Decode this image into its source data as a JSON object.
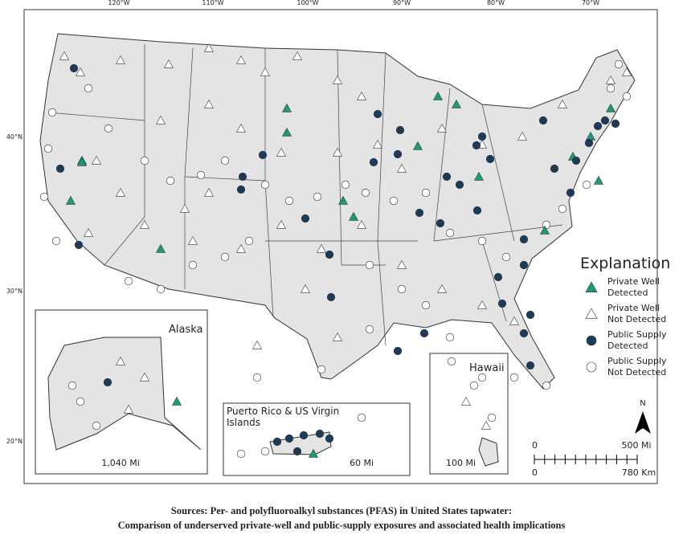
{
  "map": {
    "longitudes": [
      "120°W",
      "110°W",
      "100°W",
      "90°W",
      "80°W",
      "70°W"
    ],
    "latitudes": [
      "40°N",
      "30°N",
      "20°N"
    ],
    "legend": {
      "title": "Explanation",
      "items": [
        {
          "line1": "Private Well",
          "line2": "Detected"
        },
        {
          "line1": "Private Well",
          "line2": "Not Detected"
        },
        {
          "line1": "Public Supply",
          "line2": "Detected"
        },
        {
          "line1": "Public Supply",
          "line2": "Not Detected"
        }
      ]
    },
    "insets": {
      "alaska": {
        "title": "Alaska",
        "scale": "1,040 Mi"
      },
      "puerto_rico": {
        "title_line1": "Puerto Rico & US Virgin",
        "title_line2": "Islands",
        "scale": "60 Mi"
      },
      "hawaii": {
        "title": "Hawaii",
        "scale": "100 Mi"
      }
    },
    "scale_bar": {
      "north": "N",
      "mi_zero": "0",
      "mi_end": "500 Mi",
      "km_zero": "0",
      "km_end": "780 Km"
    },
    "sources": {
      "line1": "Sources: Per- and polyfluoroalkyl substances (PFAS) in United States tapwater:",
      "line2": "Comparison of underserved private-well and public-supply exposures and associated health implications"
    }
  }
}
